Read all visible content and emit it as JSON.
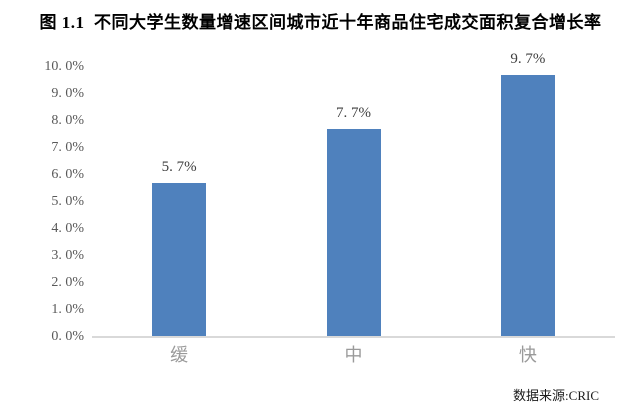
{
  "title": "图 1.1  不同大学生数量增速区间城市近十年商品住宅成交面积复合增长率",
  "source_note": "数据来源:CRIC",
  "colors": {
    "bar": "#4F81BD",
    "axis_line": "#D9D9D9",
    "tick_text": "#595959",
    "category_text": "#9A9A9A",
    "value_label_text": "#3F3F3F",
    "title_text": "#000000",
    "background": "#FFFFFF"
  },
  "chart_data": {
    "type": "bar",
    "title": "图 1.1  不同大学生数量增速区间城市近十年商品住宅成交面积复合增长率",
    "categories": [
      "缓",
      "中",
      "快"
    ],
    "values": [
      5.7,
      7.7,
      9.7
    ],
    "data_labels": [
      "5. 7%",
      "7. 7%",
      "9. 7%"
    ],
    "xlabel": "",
    "ylabel": "",
    "ylim": [
      0,
      10
    ],
    "ytick_step": 1,
    "ytick_labels": [
      "0. 0%",
      "1. 0%",
      "2. 0%",
      "3. 0%",
      "4. 0%",
      "5. 0%",
      "6. 0%",
      "7. 0%",
      "8. 0%",
      "9. 0%",
      "10. 0%"
    ],
    "grid": false,
    "legend": false,
    "annotation": "数据来源:CRIC"
  }
}
